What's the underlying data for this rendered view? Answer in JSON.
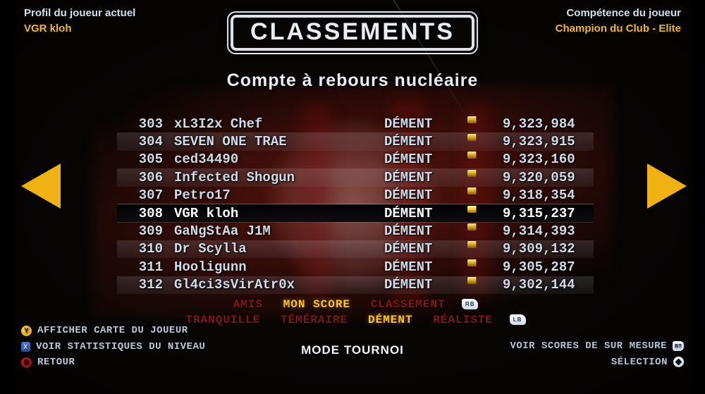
{
  "header": {
    "profile_label": "Profil du joueur actuel",
    "profile_name": "VGR kloh",
    "skill_label": "Compétence du joueur",
    "skill_value": "Champion du Club - Elite",
    "title_stamp": "CLASSEMENTS",
    "subtitle": "Compte à rebours nucléaire"
  },
  "leaderboard": {
    "rows": [
      {
        "rank": "303",
        "name": "xL3I2x Chef",
        "difficulty": "DÉMENT",
        "score": "9,323,984",
        "selected": false
      },
      {
        "rank": "304",
        "name": "SEVEN ONE TRAE",
        "difficulty": "DÉMENT",
        "score": "9,323,915",
        "selected": false
      },
      {
        "rank": "305",
        "name": "ced34490",
        "difficulty": "DÉMENT",
        "score": "9,323,160",
        "selected": false
      },
      {
        "rank": "306",
        "name": "Infected Shogun",
        "difficulty": "DÉMENT",
        "score": "9,320,059",
        "selected": false
      },
      {
        "rank": "307",
        "name": "Petro17",
        "difficulty": "DÉMENT",
        "score": "9,318,354",
        "selected": false
      },
      {
        "rank": "308",
        "name": "VGR kloh",
        "difficulty": "DÉMENT",
        "score": "9,315,237",
        "selected": true
      },
      {
        "rank": "309",
        "name": "GaNgStAa J1M",
        "difficulty": "DÉMENT",
        "score": "9,314,393",
        "selected": false
      },
      {
        "rank": "310",
        "name": "Dr Scylla",
        "difficulty": "DÉMENT",
        "score": "9,309,132",
        "selected": false
      },
      {
        "rank": "311",
        "name": "Hooligunn",
        "difficulty": "DÉMENT",
        "score": "9,305,287",
        "selected": false
      },
      {
        "rank": "312",
        "name": "Gl4ci3sVirAtr0x",
        "difficulty": "DÉMENT",
        "score": "9,302,144",
        "selected": false
      }
    ]
  },
  "filters": {
    "category": {
      "items": [
        {
          "label": "AMIS",
          "active": false
        },
        {
          "label": "MON SCORE",
          "active": true
        },
        {
          "label": "CLASSEMENT",
          "active": false
        }
      ],
      "button": "RB"
    },
    "difficulty": {
      "items": [
        {
          "label": "TRANQUILLE",
          "active": false
        },
        {
          "label": "TÉMÉRAIRE",
          "active": false
        },
        {
          "label": "DÉMENT",
          "active": true
        },
        {
          "label": "RÉALISTE",
          "active": false
        }
      ],
      "button": "LB"
    }
  },
  "legend": {
    "left": [
      {
        "button": "Y",
        "label": "AFFICHER CARTE DU JOUEUR"
      },
      {
        "button": "X",
        "label": "VOIR STATISTIQUES DU NIVEAU"
      },
      {
        "button": "B",
        "label": "RETOUR"
      }
    ],
    "center_mode": "MODE TOURNOI",
    "right": [
      {
        "label": "VOIR SCORES DE SUR MESURE",
        "button": "RT"
      },
      {
        "label": "SÉLECTION",
        "button": "select-diamond"
      }
    ]
  },
  "colors": {
    "accent_gold": "#f3ba16",
    "filter_active": "#ffc61c",
    "filter_inactive": "#801713",
    "bullet_gold": "#e2b229",
    "row_text": "#d3dae6",
    "button_y": "#d99f12",
    "button_x": "#2c4fa8",
    "button_b": "#b0211c",
    "arrow_yellow": "#f0b112"
  }
}
